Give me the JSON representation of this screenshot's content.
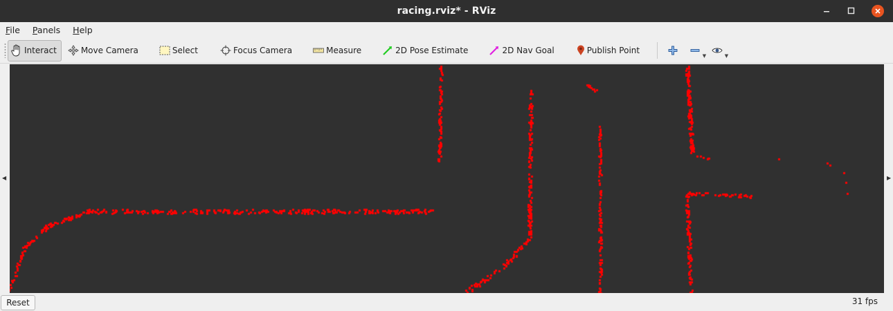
{
  "window": {
    "title": "racing.rviz* - RViz"
  },
  "menu": {
    "items": [
      {
        "key": "F",
        "rest": "ile"
      },
      {
        "key": "P",
        "rest": "anels"
      },
      {
        "key": "H",
        "rest": "elp"
      }
    ]
  },
  "toolbar": {
    "interact": "Interact",
    "move_camera": "Move Camera",
    "select": "Select",
    "focus_camera": "Focus Camera",
    "measure": "Measure",
    "pose_estimate": "2D Pose Estimate",
    "nav_goal": "2D Nav Goal",
    "publish_point": "Publish Point"
  },
  "colors": {
    "viewport_bg": "#303030",
    "point": "#ff0000",
    "pose_estimate": "#22cc22",
    "nav_goal": "#e020e0",
    "publish_point": "#cc4422"
  },
  "status": {
    "reset_label": "Reset",
    "fps": "31 fps"
  }
}
